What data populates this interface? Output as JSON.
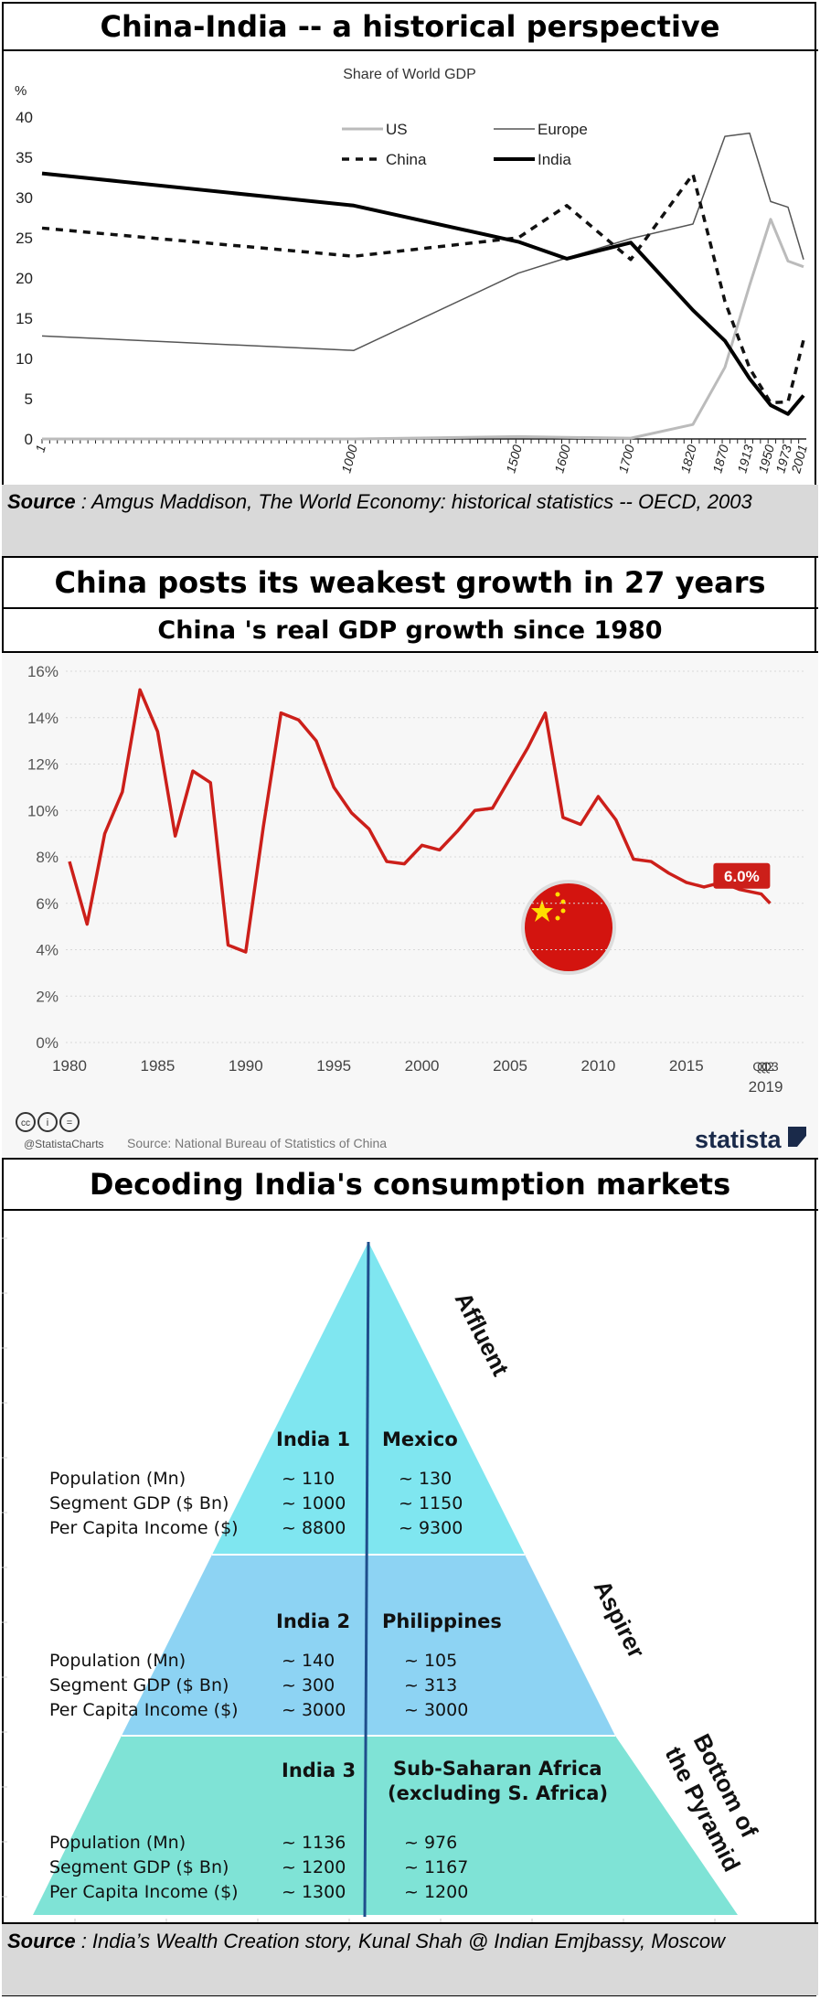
{
  "section1": {
    "title": "China-India -- a historical perspective",
    "source_label": "Source",
    "source_text": " : Amgus Maddison, The World Economy: historical statistics -- OECD, 2003"
  },
  "section2": {
    "title": "China posts its weakest growth in 27 years",
    "subtitle": "China 's real GDP growth since 1980",
    "footer_source": "Source: National Bureau of Statistics of China",
    "footer_handle": "@StatistaCharts",
    "brand": "statista",
    "badge": "6.0%"
  },
  "section3": {
    "title": "Decoding India's consumption markets",
    "source_label": "Source",
    "source_text": " : India’s Wealth Creation story, Kunal Shah @ Indian Emjbassy, Moscow",
    "tiers": [
      {
        "label": "Affluent",
        "left_head": "India 1",
        "right_head": "Mexico",
        "rows": [
          {
            "metric": "Population (Mn)",
            "india": "~ 110",
            "peer": "~ 130"
          },
          {
            "metric": "Segment GDP ($ Bn)",
            "india": "~ 1000",
            "peer": "~ 1150"
          },
          {
            "metric": "Per Capita Income ($)",
            "india": "~ 8800",
            "peer": "~ 9300"
          }
        ]
      },
      {
        "label": "Aspirer",
        "left_head": "India 2",
        "right_head": "Philippines",
        "rows": [
          {
            "metric": "Population (Mn)",
            "india": "~ 140",
            "peer": "~ 105"
          },
          {
            "metric": "Segment GDP ($ Bn)",
            "india": "~ 300",
            "peer": "~ 313"
          },
          {
            "metric": "Per Capita Income ($)",
            "india": "~ 3000",
            "peer": "~ 3000"
          }
        ]
      },
      {
        "label": "Bottom of the Pyramid",
        "label_line1": "Bottom of",
        "label_line2": "the Pyramid",
        "left_head": "India 3",
        "right_head": "Sub-Saharan Africa",
        "right_head2": "(excluding S. Africa)",
        "rows": [
          {
            "metric": "Population (Mn)",
            "india": "~ 1136",
            "peer": "~ 976"
          },
          {
            "metric": "Segment GDP ($ Bn)",
            "india": "~ 1200",
            "peer": "~ 1167"
          },
          {
            "metric": "Per Capita Income ($)",
            "india": "~ 1300",
            "peer": "~ 1200"
          }
        ]
      }
    ]
  },
  "colors": {
    "growth_line": "#cc1f1a",
    "pyramid_top": "#7fe6f0",
    "pyramid_mid": "#8dd3f3",
    "pyramid_bottom": "#7fe3d6",
    "source_bg": "#d9d9d9"
  },
  "chart_data": [
    {
      "type": "line",
      "title": "Share of World GDP",
      "ylabel": "%",
      "xlabel": "",
      "ylim": [
        0,
        40
      ],
      "yticks": [
        0,
        5,
        10,
        15,
        20,
        25,
        30,
        35,
        40
      ],
      "x": [
        "1",
        "1000",
        "1500",
        "1600",
        "1700",
        "1820",
        "1870",
        "1913",
        "1950",
        "1973",
        "2001"
      ],
      "legend": [
        "US",
        "Europe",
        "China",
        "India"
      ],
      "series": [
        {
          "name": "US",
          "values": [
            0,
            0,
            0.3,
            0.2,
            0.1,
            1.8,
            8.9,
            19.1,
            27.3,
            22.1,
            21.4
          ]
        },
        {
          "name": "Europe",
          "values": [
            12.8,
            11.0,
            20.6,
            22.5,
            24.9,
            26.7,
            37.6,
            38.0,
            29.5,
            28.8,
            22.3
          ]
        },
        {
          "name": "China",
          "values": [
            26.2,
            22.7,
            25.0,
            29.0,
            22.3,
            32.9,
            17.1,
            8.8,
            4.5,
            4.6,
            12.3
          ]
        },
        {
          "name": "India",
          "values": [
            33.0,
            29.0,
            24.5,
            22.4,
            24.4,
            16.0,
            12.2,
            7.5,
            4.2,
            3.1,
            5.4
          ]
        }
      ]
    },
    {
      "type": "line",
      "title": "China 's real GDP growth since 1980",
      "xlabel": "",
      "ylabel": "",
      "ylim": [
        0,
        16
      ],
      "yticks": [
        "0%",
        "2%",
        "4%",
        "6%",
        "8%",
        "10%",
        "12%",
        "14%",
        "16%"
      ],
      "xticks": [
        "1980",
        "1985",
        "1990",
        "1995",
        "2000",
        "2005",
        "2010",
        "2015",
        "Q1",
        "Q2",
        "Q3"
      ],
      "xtick_year": "2019",
      "series": [
        {
          "name": "Real GDP growth",
          "x": [
            1980,
            1981,
            1982,
            1983,
            1984,
            1985,
            1986,
            1987,
            1988,
            1989,
            1990,
            1991,
            1992,
            1993,
            1994,
            1995,
            1996,
            1997,
            1998,
            1999,
            2000,
            2001,
            2002,
            2003,
            2004,
            2005,
            2006,
            2007,
            2008,
            2009,
            2010,
            2011,
            2012,
            2013,
            2014,
            2015,
            2016,
            2017,
            2018,
            2019.25,
            2019.5,
            2019.75
          ],
          "values": [
            7.8,
            5.1,
            9.0,
            10.8,
            15.2,
            13.4,
            8.9,
            11.7,
            11.2,
            4.2,
            3.9,
            9.3,
            14.2,
            13.9,
            13.0,
            11.0,
            9.9,
            9.2,
            7.8,
            7.7,
            8.5,
            8.3,
            9.1,
            10.0,
            10.1,
            11.4,
            12.7,
            14.2,
            9.7,
            9.4,
            10.6,
            9.6,
            7.9,
            7.8,
            7.3,
            6.9,
            6.7,
            6.9,
            6.6,
            6.4,
            6.2,
            6.0
          ]
        }
      ],
      "last_value_label": "6.0%"
    }
  ]
}
